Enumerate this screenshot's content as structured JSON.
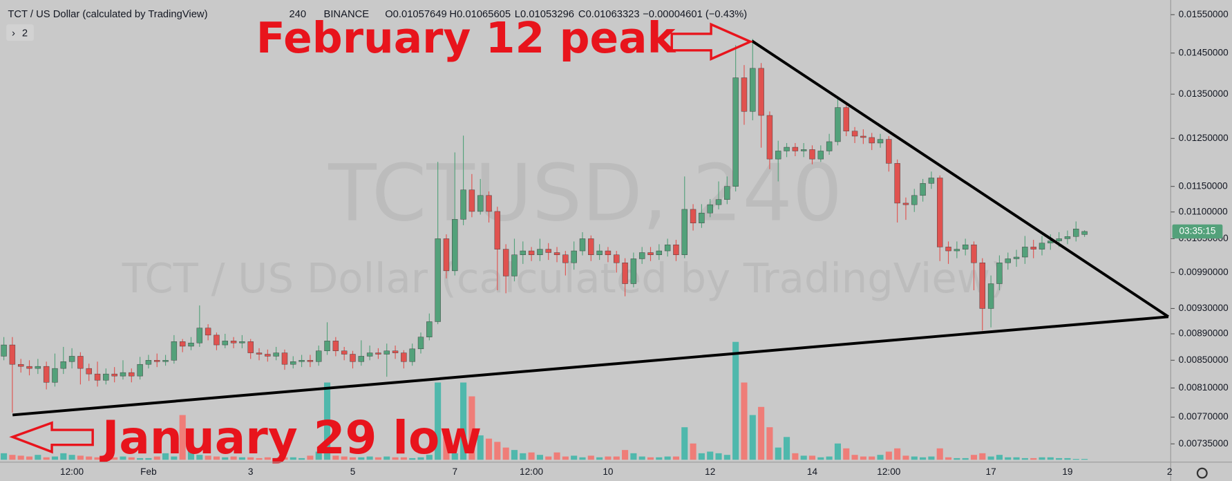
{
  "chart_data": {
    "type": "candlestick",
    "header": {
      "symbol": "TCT / US Dollar (calculated by TradingView)",
      "interval": "240",
      "exchange": "BINANCE",
      "open_label": "O0.01057649",
      "high_label": "H0.01065605",
      "low_label": "L0.01053296",
      "close_label": "C0.01063323",
      "change_label": "−0.00004601 (−0.43%)"
    },
    "watermark": "TCTUSD, 240",
    "indicator_count": "2",
    "annotations": [
      "February 12 peak",
      "January 29 low"
    ],
    "countdown_label": "03:35:15",
    "log_scale": true,
    "grid": false,
    "up_color": "#53a17a",
    "down_color": "#e0524f",
    "volume_up_color": "#4fb8ac",
    "volume_down_color": "#ef7d78",
    "ylim": [
      0.00715,
      0.0159
    ],
    "yticks": [
      {
        "value": 0.0155,
        "label": "0.01550000"
      },
      {
        "value": 0.0145,
        "label": "0.01450000"
      },
      {
        "value": 0.0135,
        "label": "0.01350000"
      },
      {
        "value": 0.0125,
        "label": "0.01250000"
      },
      {
        "value": 0.0115,
        "label": "0.01150000"
      },
      {
        "value": 0.011,
        "label": "0.01100000"
      },
      {
        "value": 0.0105,
        "label": "0.01050000"
      },
      {
        "value": 0.0099,
        "label": "0.00990000"
      },
      {
        "value": 0.0093,
        "label": "0.00930000"
      },
      {
        "value": 0.0089,
        "label": "0.00890000"
      },
      {
        "value": 0.0085,
        "label": "0.00850000"
      },
      {
        "value": 0.0081,
        "label": "0.00810000"
      },
      {
        "value": 0.0077,
        "label": "0.00770000"
      },
      {
        "value": 0.00735,
        "label": "0.00735000"
      }
    ],
    "categories": [
      null,
      null,
      null,
      null,
      null,
      null,
      null,
      null,
      "12:00",
      null,
      null,
      null,
      null,
      null,
      null,
      null,
      null,
      "Feb",
      null,
      null,
      null,
      null,
      null,
      null,
      null,
      null,
      null,
      null,
      null,
      "3",
      null,
      null,
      null,
      null,
      null,
      null,
      null,
      null,
      null,
      null,
      null,
      "5",
      null,
      null,
      null,
      null,
      null,
      null,
      null,
      null,
      null,
      null,
      null,
      "7",
      null,
      null,
      null,
      null,
      null,
      null,
      null,
      null,
      "12:00",
      null,
      null,
      null,
      null,
      null,
      null,
      null,
      null,
      "10",
      null,
      null,
      null,
      null,
      null,
      null,
      null,
      null,
      null,
      null,
      null,
      "12",
      null,
      null,
      null,
      null,
      null,
      null,
      null,
      null,
      null,
      null,
      null,
      "14",
      null,
      null,
      null,
      null,
      null,
      null,
      null,
      null,
      "12:00",
      null,
      null,
      null,
      null,
      null,
      null,
      null,
      null,
      null,
      null,
      null,
      "17",
      null,
      null,
      null,
      null,
      null,
      null,
      null,
      null,
      "19",
      null,
      null,
      null,
      null,
      null,
      null,
      null,
      null,
      null,
      null,
      null,
      "2"
    ],
    "open": [
      0.00856,
      0.00873,
      0.00844,
      0.00841,
      0.00838,
      0.00841,
      0.00818,
      0.00838,
      0.00848,
      0.00856,
      0.00838,
      0.0083,
      0.00821,
      0.0083,
      0.00827,
      0.00832,
      0.00827,
      0.00844,
      0.0085,
      0.00848,
      0.0085,
      0.00878,
      0.00871,
      0.00876,
      0.00899,
      0.00888,
      0.00873,
      0.00879,
      0.00876,
      0.00878,
      0.00861,
      0.00859,
      0.00856,
      0.00861,
      0.00844,
      0.00848,
      0.0085,
      0.00848,
      0.00864,
      0.00879,
      0.00864,
      0.00859,
      0.00848,
      0.00856,
      0.00861,
      0.00859,
      0.00864,
      0.00861,
      0.00848,
      0.00867,
      0.00885,
      0.00909,
      0.0105,
      0.00993,
      0.01086,
      0.01143,
      0.01101,
      0.01132,
      0.01101,
      0.01031,
      0.00984,
      0.01021,
      0.01028,
      0.01021,
      0.01031,
      0.01025,
      0.01021,
      0.01007,
      0.01028,
      0.0105,
      0.01021,
      0.01028,
      0.01021,
      0.01007,
      0.00971,
      0.01014,
      0.01025,
      0.01021,
      0.01028,
      0.01039,
      0.01021,
      0.01105,
      0.01079,
      0.01098,
      0.01114,
      0.01124,
      0.0115,
      0.01389,
      0.0131,
      0.01412,
      0.01301,
      0.01206,
      0.01223,
      0.01231,
      0.01223,
      0.01226,
      0.01206,
      0.01223,
      0.01243,
      0.01319,
      0.01266,
      0.01255,
      0.01252,
      0.0124,
      0.01248,
      0.01197,
      0.01117,
      0.01114,
      0.01132,
      0.01156,
      0.01167,
      0.01035,
      0.01028,
      0.01031,
      0.01039,
      0.01007,
      0.0093,
      0.00971,
      0.01007,
      0.01014,
      0.01017,
      0.01035,
      0.01031,
      0.01042,
      0.01046,
      0.0105,
      0.01054,
      0.01057649,
      null,
      null,
      null,
      null,
      null,
      null,
      null,
      null,
      null,
      null
    ],
    "high": [
      0.00885,
      0.00885,
      0.00852,
      0.0085,
      0.00852,
      0.00848,
      0.0086,
      0.0087,
      0.00868,
      0.00862,
      0.00845,
      0.00848,
      0.00838,
      0.0084,
      0.0085,
      0.00838,
      0.00855,
      0.00858,
      0.0086,
      0.00858,
      0.00888,
      0.00882,
      0.00885,
      0.00935,
      0.00905,
      0.00892,
      0.0089,
      0.00885,
      0.00888,
      0.00882,
      0.00868,
      0.00866,
      0.0087,
      0.00866,
      0.00856,
      0.00858,
      0.00858,
      0.00872,
      0.00908,
      0.00885,
      0.0087,
      0.00864,
      0.0088,
      0.00872,
      0.00868,
      0.00875,
      0.00872,
      0.00865,
      0.00875,
      0.00892,
      0.00922,
      0.012,
      0.01058,
      0.0122,
      0.01256,
      0.01175,
      0.01165,
      0.0114,
      0.0111,
      0.0104,
      0.0105,
      0.01045,
      0.01035,
      0.0105,
      0.01042,
      0.01035,
      0.01028,
      0.01045,
      0.01062,
      0.01056,
      0.0104,
      0.01035,
      0.01028,
      0.01015,
      0.01025,
      0.01035,
      0.01035,
      0.0104,
      0.0105,
      0.01048,
      0.0117,
      0.01115,
      0.01115,
      0.01125,
      0.0116,
      0.0117,
      0.0147,
      0.0142,
      0.01486,
      0.01425,
      0.0131,
      0.01245,
      0.0124,
      0.0124,
      0.0124,
      0.01235,
      0.01235,
      0.0126,
      0.01345,
      0.0133,
      0.01275,
      0.0127,
      0.01262,
      0.0126,
      0.01255,
      0.01205,
      0.01128,
      0.01145,
      0.01165,
      0.0118,
      0.01172,
      0.01045,
      0.01045,
      0.0105,
      0.01045,
      0.01015,
      0.00985,
      0.0102,
      0.01025,
      0.0103,
      0.01055,
      0.01048,
      0.01055,
      0.01058,
      0.01062,
      0.01065,
      0.01082,
      0.01065605,
      null,
      null,
      null,
      null,
      null,
      null,
      null,
      null,
      null,
      null
    ],
    "low": [
      0.0085,
      0.00776,
      0.00832,
      0.00828,
      0.0083,
      0.00808,
      0.00812,
      0.0083,
      0.00838,
      0.00815,
      0.0082,
      0.00812,
      0.00815,
      0.00818,
      0.00822,
      0.00818,
      0.00822,
      0.00838,
      0.0084,
      0.00842,
      0.00845,
      0.00862,
      0.00865,
      0.0087,
      0.0088,
      0.00865,
      0.00868,
      0.00868,
      0.00868,
      0.00852,
      0.0085,
      0.00848,
      0.0085,
      0.00836,
      0.00838,
      0.0084,
      0.0084,
      0.00842,
      0.00858,
      0.00856,
      0.0085,
      0.00838,
      0.00842,
      0.0085,
      0.00852,
      0.00826,
      0.00852,
      0.00838,
      0.00842,
      0.0086,
      0.0088,
      0.00905,
      0.0098,
      0.00985,
      0.01075,
      0.0109,
      0.01095,
      0.0108,
      0.0096,
      0.00955,
      0.00975,
      0.01005,
      0.0101,
      0.0101,
      0.01012,
      0.01008,
      0.00985,
      0.00995,
      0.0102,
      0.0101,
      0.01012,
      0.01008,
      0.0099,
      0.0095,
      0.00965,
      0.01005,
      0.0101,
      0.01012,
      0.01018,
      0.0101,
      0.01015,
      0.01065,
      0.0107,
      0.0109,
      0.01105,
      0.01115,
      0.0114,
      0.0128,
      0.0129,
      0.0123,
      0.01185,
      0.0116,
      0.0121,
      0.01212,
      0.0121,
      0.01195,
      0.012,
      0.01215,
      0.01235,
      0.01255,
      0.0124,
      0.01238,
      0.01225,
      0.0123,
      0.0118,
      0.0108,
      0.01085,
      0.011,
      0.0112,
      0.01145,
      0.0101,
      0.01005,
      0.01015,
      0.0102,
      0.0096,
      0.00895,
      0.009,
      0.0096,
      0.00995,
      0.01,
      0.01005,
      0.01015,
      0.0102,
      0.0103,
      0.01035,
      0.0104,
      0.01045,
      0.01053296,
      null,
      null,
      null,
      null,
      null,
      null,
      null,
      null,
      null,
      null
    ],
    "close": [
      0.00873,
      0.00844,
      0.00841,
      0.00838,
      0.00841,
      0.00818,
      0.00838,
      0.00848,
      0.00856,
      0.00838,
      0.0083,
      0.00821,
      0.0083,
      0.00827,
      0.00832,
      0.00827,
      0.00844,
      0.0085,
      0.00848,
      0.0085,
      0.00878,
      0.00871,
      0.00876,
      0.00899,
      0.00888,
      0.00873,
      0.00879,
      0.00876,
      0.00878,
      0.00861,
      0.00859,
      0.00856,
      0.00861,
      0.00844,
      0.00848,
      0.0085,
      0.00848,
      0.00864,
      0.00879,
      0.00864,
      0.00859,
      0.00848,
      0.00856,
      0.00861,
      0.00859,
      0.00864,
      0.00861,
      0.00848,
      0.00867,
      0.00885,
      0.00909,
      0.0105,
      0.00993,
      0.01086,
      0.01143,
      0.01101,
      0.01132,
      0.01101,
      0.01031,
      0.00984,
      0.01021,
      0.01028,
      0.01021,
      0.01031,
      0.01025,
      0.01021,
      0.01007,
      0.01028,
      0.0105,
      0.01021,
      0.01028,
      0.01021,
      0.01007,
      0.00971,
      0.01014,
      0.01025,
      0.01021,
      0.01028,
      0.01039,
      0.01021,
      0.01105,
      0.01079,
      0.01098,
      0.01114,
      0.01124,
      0.0115,
      0.01389,
      0.0131,
      0.01412,
      0.01301,
      0.01206,
      0.01223,
      0.01231,
      0.01223,
      0.01226,
      0.01206,
      0.01223,
      0.01243,
      0.01319,
      0.01266,
      0.01255,
      0.01252,
      0.0124,
      0.01248,
      0.01197,
      0.01117,
      0.01114,
      0.01132,
      0.01156,
      0.01167,
      0.01035,
      0.01028,
      0.01031,
      0.01039,
      0.01007,
      0.0093,
      0.00971,
      0.01007,
      0.01014,
      0.01017,
      0.01035,
      0.01031,
      0.01042,
      0.01046,
      0.0105,
      0.01054,
      0.01068,
      0.01063323,
      null,
      null,
      null,
      null,
      null,
      null,
      null,
      null,
      null,
      null
    ],
    "volume": [
      8,
      6,
      5,
      4,
      6,
      3,
      4,
      8,
      6,
      5,
      4,
      3,
      3,
      3,
      4,
      3,
      2,
      2,
      4,
      8,
      4,
      55,
      16,
      6,
      5,
      4,
      3,
      4,
      3,
      3,
      2,
      3,
      2,
      3,
      3,
      2,
      5,
      10,
      95,
      5,
      4,
      3,
      3,
      4,
      3,
      4,
      3,
      3,
      2,
      3,
      6,
      95,
      28,
      8,
      95,
      78,
      30,
      26,
      22,
      15,
      12,
      8,
      9,
      6,
      4,
      9,
      4,
      5,
      3,
      5,
      3,
      4,
      4,
      12,
      8,
      4,
      3,
      3,
      4,
      4,
      40,
      20,
      8,
      10,
      8,
      6,
      145,
      95,
      55,
      65,
      40,
      15,
      28,
      8,
      5,
      5,
      3,
      4,
      20,
      14,
      6,
      4,
      4,
      6,
      10,
      14,
      5,
      4,
      3,
      4,
      14,
      3,
      2,
      2,
      6,
      8,
      4,
      6,
      3,
      3,
      2,
      2,
      3,
      3,
      2,
      2,
      1,
      1,
      null,
      null,
      null,
      null,
      null,
      null,
      null,
      null,
      null,
      null
    ]
  }
}
